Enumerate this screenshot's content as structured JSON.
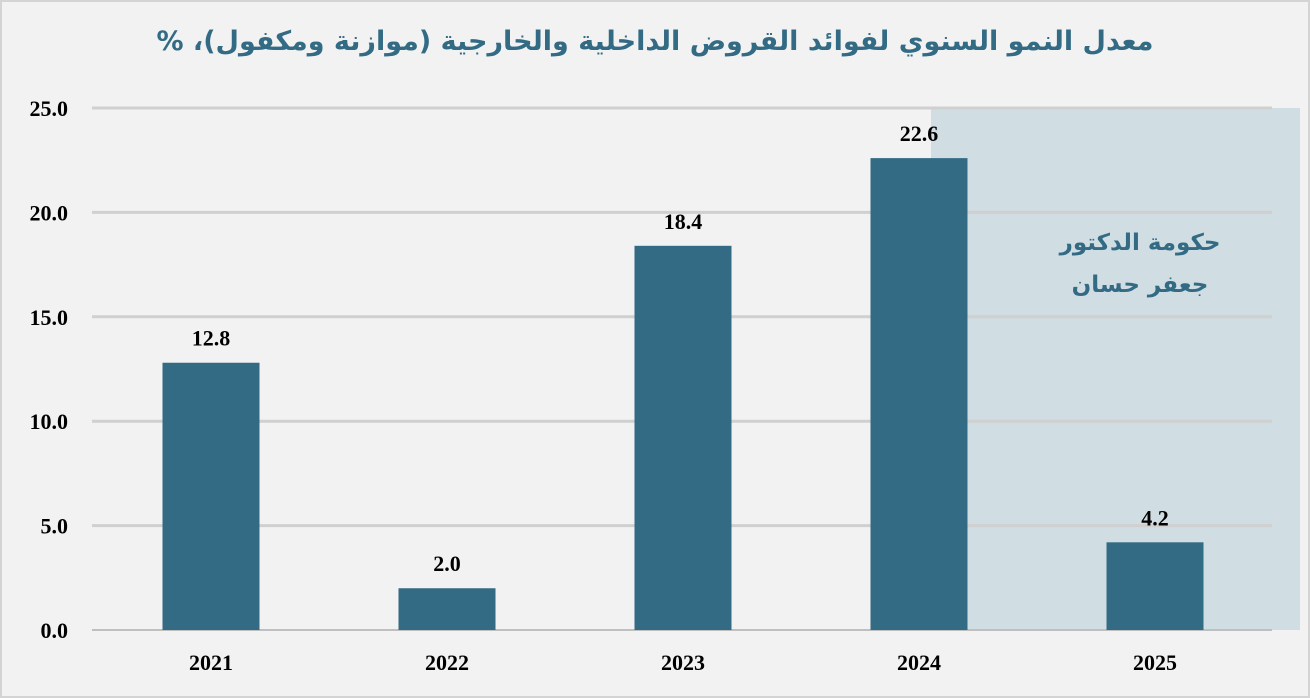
{
  "chart_data": {
    "type": "bar",
    "title": "معدل النمو السنوي لفوائد القروض الداخلية والخارجية (موازنة ومكفول)، %",
    "categories": [
      "2021",
      "2022",
      "2023",
      "2024",
      "2025"
    ],
    "values": [
      12.8,
      2.0,
      18.4,
      22.6,
      4.2
    ],
    "data_labels": [
      "12.8",
      "2.0",
      "18.4",
      "22.6",
      "4.2"
    ],
    "ylim": [
      0,
      25
    ],
    "yticks": [
      0,
      5,
      10,
      15,
      20,
      25
    ],
    "ytick_labels": [
      "0.0",
      "5.0",
      "10.0",
      "15.0",
      "20.0",
      "25.0"
    ],
    "xlabel": "",
    "ylabel": "",
    "grid": true,
    "legend": "none",
    "bar_color": "#336b84",
    "highlight": {
      "from_category": "2024",
      "to_category": "2025",
      "color": "#d0dde3",
      "text_lines": [
        "حكومة الدكتور",
        "جعفر حسان"
      ],
      "text_color": "#336b84"
    }
  }
}
